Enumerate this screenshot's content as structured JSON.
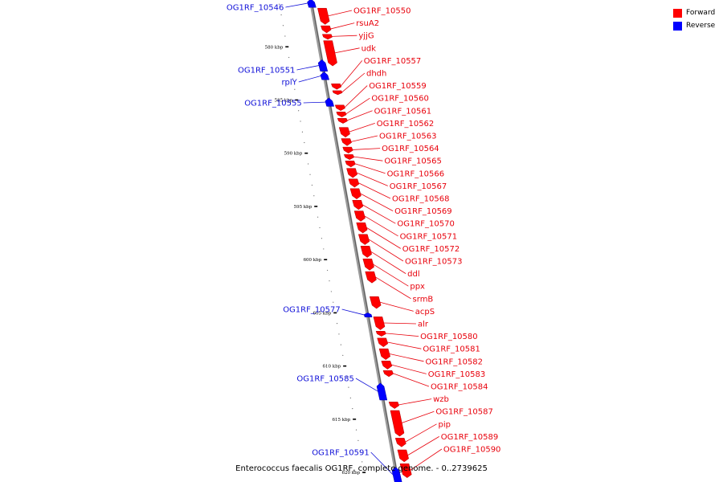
{
  "legend": {
    "forward_label": "Forward",
    "reverse_label": "Reverse",
    "forward_color": "#ff0000",
    "reverse_color": "#0000ff"
  },
  "caption": "Enterococcus faecalis OG1RF, complete genome. - 0..2739625",
  "axis": {
    "start_kbp": 576,
    "end_kbp": 620.9,
    "ticks": [
      {
        "kbp": 580,
        "label": "580 kbp"
      },
      {
        "kbp": 585,
        "label": "585 kbp"
      },
      {
        "kbp": 590,
        "label": "590 kbp"
      },
      {
        "kbp": 595,
        "label": "595 kbp"
      },
      {
        "kbp": 600,
        "label": "600 kbp"
      },
      {
        "kbp": 605,
        "label": "605 kbp"
      },
      {
        "kbp": 610,
        "label": "610 kbp"
      },
      {
        "kbp": 615,
        "label": "615 kbp"
      },
      {
        "kbp": 620,
        "label": "620 kbp"
      }
    ]
  },
  "forward_genes": [
    {
      "name": "OG1RF_10550",
      "start": 576.3,
      "end": 577.9
    },
    {
      "name": "rsuA2",
      "start": 577.95,
      "end": 578.7
    },
    {
      "name": "yjjG",
      "start": 578.75,
      "end": 579.3
    },
    {
      "name": "udk",
      "start": 579.35,
      "end": 581.8
    },
    {
      "name": "OG1RF_10557",
      "start": 583.4,
      "end": 584.0
    },
    {
      "name": "dhdh",
      "start": 584.05,
      "end": 584.5
    },
    {
      "name": "OG1RF_10559",
      "start": 585.4,
      "end": 586.0
    },
    {
      "name": "OG1RF_10560",
      "start": 586.05,
      "end": 586.6
    },
    {
      "name": "OG1RF_10561",
      "start": 586.65,
      "end": 587.2
    },
    {
      "name": "OG1RF_10562",
      "start": 587.5,
      "end": 588.5
    },
    {
      "name": "OG1RF_10563",
      "start": 588.55,
      "end": 589.3
    },
    {
      "name": "OG1RF_10564",
      "start": 589.35,
      "end": 590.0
    },
    {
      "name": "OG1RF_10565",
      "start": 590.05,
      "end": 590.6
    },
    {
      "name": "OG1RF_10566",
      "start": 590.65,
      "end": 591.3
    },
    {
      "name": "OG1RF_10567",
      "start": 591.35,
      "end": 592.3
    },
    {
      "name": "OG1RF_10568",
      "start": 592.35,
      "end": 593.2
    },
    {
      "name": "OG1RF_10569",
      "start": 593.25,
      "end": 594.3
    },
    {
      "name": "OG1RF_10570",
      "start": 594.35,
      "end": 595.3
    },
    {
      "name": "OG1RF_10571",
      "start": 595.35,
      "end": 596.4
    },
    {
      "name": "OG1RF_10572",
      "start": 596.45,
      "end": 597.5
    },
    {
      "name": "OG1RF_10573",
      "start": 597.55,
      "end": 598.6
    },
    {
      "name": "ddl",
      "start": 598.65,
      "end": 599.8
    },
    {
      "name": "ppx",
      "start": 599.85,
      "end": 601.0
    },
    {
      "name": "srmB",
      "start": 601.05,
      "end": 602.2
    },
    {
      "name": "acpS",
      "start": 603.4,
      "end": 604.6
    },
    {
      "name": "alr",
      "start": 605.3,
      "end": 606.6
    },
    {
      "name": "OG1RF_10580",
      "start": 606.65,
      "end": 607.2
    },
    {
      "name": "OG1RF_10581",
      "start": 607.3,
      "end": 608.2
    },
    {
      "name": "OG1RF_10582",
      "start": 608.3,
      "end": 609.4
    },
    {
      "name": "OG1RF_10583",
      "start": 609.45,
      "end": 610.3
    },
    {
      "name": "OG1RF_10584",
      "start": 610.35,
      "end": 611.0
    },
    {
      "name": "wzb",
      "start": 613.3,
      "end": 614.0
    },
    {
      "name": "OG1RF_10587",
      "start": 614.1,
      "end": 616.6
    },
    {
      "name": "pip",
      "start": 616.7,
      "end": 617.6
    },
    {
      "name": "OG1RF_10589",
      "start": 617.8,
      "end": 619.0
    },
    {
      "name": "OG1RF_10590",
      "start": 619.1,
      "end": 620.5
    }
  ],
  "reverse_genes": [
    {
      "name": "OG1RF_10546",
      "start": 575.5,
      "end": 576.3
    },
    {
      "name": "OG1RF_10551",
      "start": 581.2,
      "end": 582.3
    },
    {
      "name": "rplY",
      "start": 582.35,
      "end": 583.1
    },
    {
      "name": "OG1RF_10555",
      "start": 584.8,
      "end": 585.6
    },
    {
      "name": "OG1RF_10577",
      "start": 605.0,
      "end": 605.4
    },
    {
      "name": "OG1RF_10585",
      "start": 611.6,
      "end": 613.2
    },
    {
      "name": "OG1RF_10591",
      "start": 619.5,
      "end": 621.0
    }
  ],
  "forward_label_positions_note": "",
  "reverse_label_order": [
    "OG1RF_10546",
    "OG1RF_10551",
    "rplY",
    "OG1RF_10555",
    "OG1RF_10577",
    "OG1RF_10585",
    "OG1RF_10591"
  ]
}
